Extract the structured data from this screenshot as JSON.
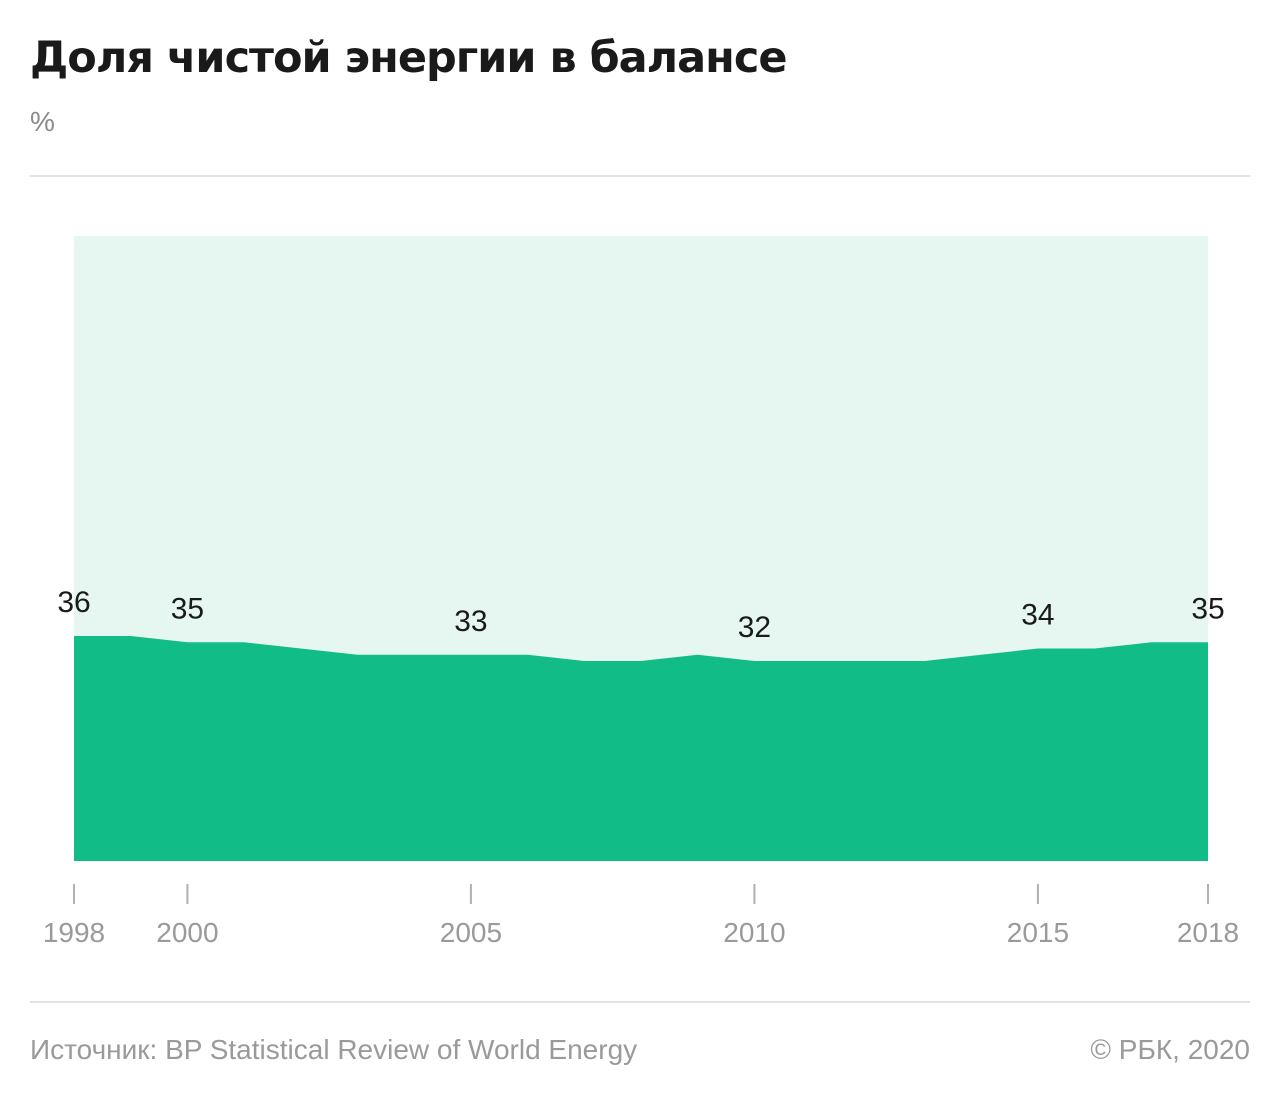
{
  "header": {
    "title": "Доля чистой энергии в балансе",
    "unit": "%"
  },
  "footer": {
    "source": "Источник: BP Statistical Review of World Energy",
    "copyright": "© РБК, 2020"
  },
  "colors": {
    "area": "#12bc87",
    "background_band": "#e6f7f1",
    "rule": "#e3e3e3",
    "label_text": "#1a1a1a",
    "tick_text": "#9a9a9a"
  },
  "chart_data": {
    "type": "area",
    "x": [
      1998,
      1999,
      2000,
      2001,
      2002,
      2003,
      2004,
      2005,
      2006,
      2007,
      2008,
      2009,
      2010,
      2011,
      2012,
      2013,
      2014,
      2015,
      2016,
      2017,
      2018
    ],
    "values": [
      36,
      36,
      35,
      35,
      34,
      33,
      33,
      33,
      33,
      32,
      32,
      33,
      32,
      32,
      32,
      32,
      33,
      34,
      34,
      35,
      35
    ],
    "ylim": [
      0,
      100
    ],
    "ticks": [
      1998,
      2000,
      2005,
      2010,
      2015,
      2018
    ],
    "tick_labels": [
      "1998",
      "2000",
      "2005",
      "2010",
      "2015",
      "2018"
    ],
    "data_labels": [
      {
        "x": 1998,
        "text": "36"
      },
      {
        "x": 2000,
        "text": "35"
      },
      {
        "x": 2005,
        "text": "33"
      },
      {
        "x": 2010,
        "text": "32"
      },
      {
        "x": 2015,
        "text": "34"
      },
      {
        "x": 2018,
        "text": "35"
      }
    ],
    "grid": false,
    "legend": "none"
  }
}
